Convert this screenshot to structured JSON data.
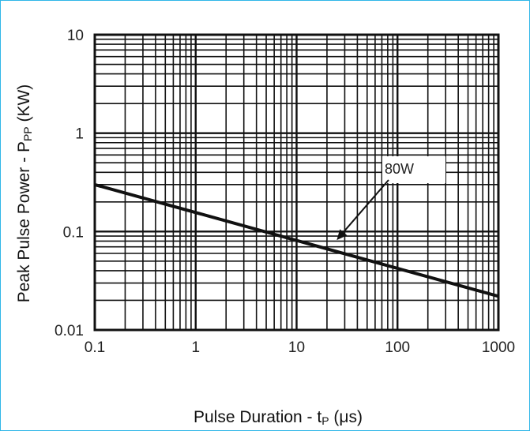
{
  "chart_data": {
    "type": "line",
    "title": "",
    "xlabel": "Pulse Duration - tP (μs)",
    "xlabel_main": "Pulse Duration - t",
    "xlabel_sub": "P",
    "xlabel_unit": " (μs)",
    "ylabel": "Peak Pulse Power - PPP (KW)",
    "ylabel_main": "Peak Pulse Power - P",
    "ylabel_sub": "PP",
    "ylabel_unit": " (KW)",
    "x_scale": "log",
    "y_scale": "log",
    "xlim": [
      0.1,
      1000
    ],
    "ylim": [
      0.01,
      10
    ],
    "x_ticks": [
      {
        "value": 0.1,
        "label": "0.1"
      },
      {
        "value": 1,
        "label": "1"
      },
      {
        "value": 10,
        "label": "10"
      },
      {
        "value": 100,
        "label": "100"
      },
      {
        "value": 1000,
        "label": "1000"
      }
    ],
    "y_ticks": [
      {
        "value": 0.01,
        "label": "0.01"
      },
      {
        "value": 0.1,
        "label": "0.1"
      },
      {
        "value": 1,
        "label": "1"
      },
      {
        "value": 10,
        "label": "10"
      }
    ],
    "grid": true,
    "series": [
      {
        "name": "80W",
        "x": [
          0.1,
          1000
        ],
        "y": [
          0.3,
          0.022
        ]
      }
    ],
    "annotations": [
      {
        "text": "80W",
        "points_to": {
          "x": 25,
          "y": 0.082
        }
      }
    ],
    "colors": {
      "line": "#111111",
      "grid": "#111111",
      "frame": "#2fb6e8"
    }
  }
}
